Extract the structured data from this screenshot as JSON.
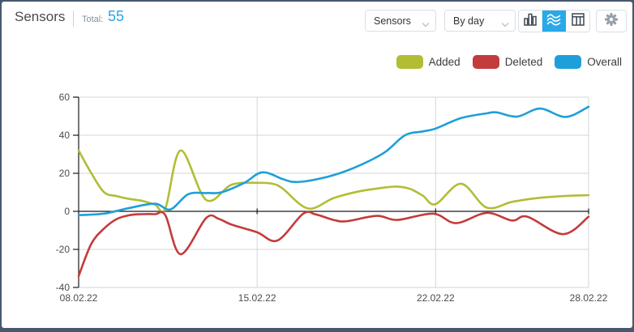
{
  "header": {
    "title": "Sensors",
    "total_label": "Total:",
    "total_value": "55"
  },
  "toolbar": {
    "chart_type_value": "Sensors",
    "period_value": "By day",
    "view_buttons": [
      "bar-chart",
      "line-chart",
      "table"
    ],
    "active_view": "line-chart",
    "active_view_color": "#29a9e8"
  },
  "legend": {
    "items": [
      {
        "label": "Added",
        "color": "#b2bd34"
      },
      {
        "label": "Deleted",
        "color": "#c43b3b"
      },
      {
        "label": "Overall",
        "color": "#1f9fd9"
      }
    ]
  },
  "colors": {
    "frame": "#46586e",
    "accent_blue": "#2aa5e0",
    "grid": "#d6d6d6",
    "axis": "#1a1a1a",
    "tick_text": "#4c4c4c"
  },
  "chart_data": {
    "type": "line",
    "title": "",
    "xlabel": "",
    "ylabel": "",
    "x_unit": "days since 08.02.22",
    "xlim": [
      0,
      20
    ],
    "ylim": [
      -40,
      60
    ],
    "yticks": [
      60,
      40,
      20,
      0,
      -20,
      -40
    ],
    "xticks": [
      {
        "day": 0,
        "label": "08.02.22"
      },
      {
        "day": 7,
        "label": "15.02.22"
      },
      {
        "day": 14,
        "label": "22.02.22"
      },
      {
        "day": 20,
        "label": "28.02.22"
      }
    ],
    "grid": {
      "horizontal": true,
      "vertical": true
    },
    "legend_position": "top-right",
    "series": [
      {
        "name": "Added",
        "color": "#b2bd34",
        "points": [
          [
            0,
            32
          ],
          [
            0.5,
            20
          ],
          [
            1,
            10
          ],
          [
            1.5,
            8
          ],
          [
            2,
            6.5
          ],
          [
            2.5,
            5.5
          ],
          [
            3,
            3.5
          ],
          [
            3.4,
            1.5
          ],
          [
            4,
            32
          ],
          [
            5,
            6
          ],
          [
            6,
            14
          ],
          [
            7,
            15
          ],
          [
            7.6,
            14.5
          ],
          [
            8,
            12
          ],
          [
            9,
            1.5
          ],
          [
            10,
            7
          ],
          [
            11,
            10.5
          ],
          [
            12,
            12.5
          ],
          [
            12.5,
            13
          ],
          [
            13,
            11.8
          ],
          [
            13.5,
            8.2
          ],
          [
            14,
            3.8
          ],
          [
            15,
            14.5
          ],
          [
            16,
            2
          ],
          [
            17,
            5
          ],
          [
            18,
            7
          ],
          [
            19,
            8
          ],
          [
            20,
            8.5
          ]
        ]
      },
      {
        "name": "Deleted",
        "color": "#c43b3b",
        "points": [
          [
            0,
            -34
          ],
          [
            0.5,
            -17
          ],
          [
            1,
            -9
          ],
          [
            1.5,
            -4
          ],
          [
            2,
            -2
          ],
          [
            2.5,
            -1.5
          ],
          [
            3,
            -1.5
          ],
          [
            3.4,
            -2
          ],
          [
            4,
            -22.5
          ],
          [
            5,
            -3.5
          ],
          [
            5.5,
            -4
          ],
          [
            6,
            -7
          ],
          [
            7,
            -11
          ],
          [
            7.8,
            -15.3
          ],
          [
            8.8,
            -1.3
          ],
          [
            9.3,
            -1.6
          ],
          [
            10,
            -4.5
          ],
          [
            10.5,
            -5.2
          ],
          [
            11.7,
            -2.4
          ],
          [
            12.5,
            -4.5
          ],
          [
            13.9,
            -1.2
          ],
          [
            14.8,
            -6.2
          ],
          [
            16,
            -0.8
          ],
          [
            17,
            -4.8
          ],
          [
            17.6,
            -2.8
          ],
          [
            19,
            -12
          ],
          [
            20,
            -2.8
          ]
        ]
      },
      {
        "name": "Overall",
        "color": "#1f9fd9",
        "points": [
          [
            0,
            -2
          ],
          [
            1,
            -1.2
          ],
          [
            2,
            1.8
          ],
          [
            3,
            4
          ],
          [
            3.6,
            1
          ],
          [
            4.3,
            9
          ],
          [
            5,
            9.6
          ],
          [
            5.6,
            10
          ],
          [
            6.5,
            15
          ],
          [
            7.2,
            20.5
          ],
          [
            8,
            17
          ],
          [
            8.4,
            15.5
          ],
          [
            9,
            16
          ],
          [
            10,
            19
          ],
          [
            11,
            24
          ],
          [
            12,
            31
          ],
          [
            12.8,
            40
          ],
          [
            13.5,
            42
          ],
          [
            14,
            43.5
          ],
          [
            15,
            49
          ],
          [
            16,
            51.5
          ],
          [
            16.4,
            52
          ],
          [
            17.2,
            49.8
          ],
          [
            18.1,
            54
          ],
          [
            19.1,
            49.6
          ],
          [
            20,
            55
          ]
        ]
      }
    ]
  }
}
